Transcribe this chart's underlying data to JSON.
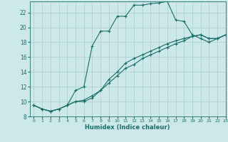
{
  "xlabel": "Humidex (Indice chaleur)",
  "background_color": "#cce8e8",
  "line_color": "#1a6e6a",
  "grid_color": "#aacece",
  "xlim": [
    -0.5,
    23
  ],
  "ylim": [
    8,
    23.5
  ],
  "xticks": [
    0,
    1,
    2,
    3,
    4,
    5,
    6,
    7,
    8,
    9,
    10,
    11,
    12,
    13,
    14,
    15,
    16,
    17,
    18,
    19,
    20,
    21,
    22,
    23
  ],
  "yticks": [
    8,
    10,
    12,
    14,
    16,
    18,
    20,
    22
  ],
  "series1_x": [
    0,
    1,
    2,
    3,
    4,
    5,
    6,
    7,
    8,
    9,
    10,
    11,
    12,
    13,
    14,
    15,
    16,
    17,
    18,
    19,
    20,
    21,
    22,
    23
  ],
  "series1_y": [
    9.5,
    9.0,
    8.7,
    9.0,
    9.5,
    11.5,
    12.0,
    17.5,
    19.5,
    19.5,
    21.5,
    21.5,
    23.0,
    23.0,
    23.2,
    23.3,
    23.5,
    21.0,
    20.8,
    19.0,
    18.5,
    18.0,
    18.5,
    19.0
  ],
  "series2_x": [
    0,
    1,
    2,
    3,
    4,
    5,
    6,
    7,
    8,
    9,
    10,
    11,
    12,
    13,
    14,
    15,
    16,
    17,
    18,
    19,
    20,
    21,
    22,
    23
  ],
  "series2_y": [
    9.5,
    9.0,
    8.7,
    9.0,
    9.5,
    10.0,
    10.0,
    10.5,
    11.5,
    12.5,
    13.5,
    14.5,
    15.0,
    15.8,
    16.3,
    16.8,
    17.3,
    17.8,
    18.2,
    18.8,
    19.0,
    18.5,
    18.5,
    19.0
  ],
  "series3_x": [
    0,
    1,
    2,
    3,
    4,
    5,
    6,
    7,
    8,
    9,
    10,
    11,
    12,
    13,
    14,
    15,
    16,
    17,
    18,
    19,
    20,
    21,
    22,
    23
  ],
  "series3_y": [
    9.5,
    9.0,
    8.7,
    9.0,
    9.5,
    10.0,
    10.2,
    10.8,
    11.5,
    13.0,
    14.0,
    15.2,
    15.8,
    16.3,
    16.8,
    17.3,
    17.8,
    18.2,
    18.5,
    18.8,
    19.0,
    18.5,
    18.5,
    19.0
  ]
}
